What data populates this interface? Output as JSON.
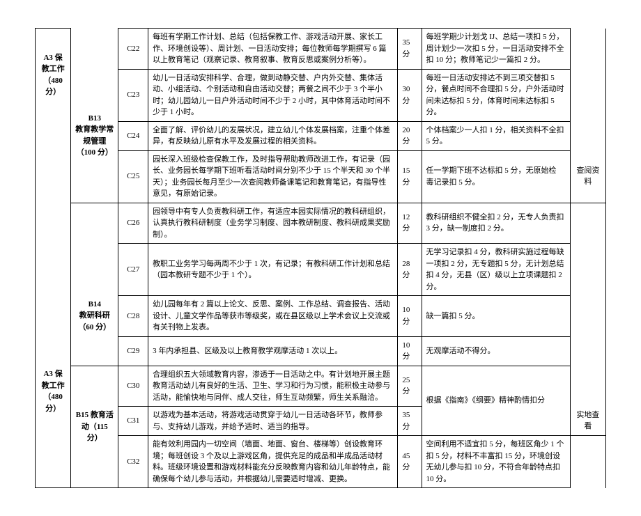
{
  "colA": {
    "a1": "A3 保教工作（480 分）",
    "a2": "A3 保教工作（480 分）"
  },
  "colB": {
    "b13": "B13\n教育教学常规管理（100 分）",
    "b14": "B14\n教研科研（60 分）",
    "b15": "B15 教育活动（115 分）"
  },
  "rows": [
    {
      "c": "C22",
      "desc": "每班有学期工作计划、总结（包括保教工作、游戏活动开展、家长工作、环境创设等）、周计划、一日活动安排；每位教师每学期撰写 6 篇以上教育笔记（观察记录、教育叙事、教育反思或案例分析等）。",
      "score": "35 分",
      "deduct": "每班学期少计划戈 IJ、总结一项扣 5 分，周计划少一次扣 5 分，一日活动安排不全扣 10 分；教师笔记少一篇扣 2 分。"
    },
    {
      "c": "C23",
      "desc": "幼儿一日活动安排科学、合理，做到动静交替、户内外交替、集体活动、小组活动、个别活动和自由活动交替；两餐之间不少于 3 个半小时；幼儿园幼儿一日户外活动时间不少于 2 小时，其中体育活动时间不少于 1 小时。",
      "score": "30 分",
      "deduct": "每班一日活动安排达不到三项交替扣 5 分，餐点时间不合理扣 5 分，户外活动时间未达标扣 5 分，体育时间未达标扣 5 分。"
    },
    {
      "c": "C24",
      "desc": "全面了解、评价幼儿的发展状况，建立幼儿个体发展档案，注重个体差异，有反映幼儿原有水平及发展过程的相关资料。",
      "score": "20 分",
      "deduct": "个体档案少一人扣 1 分，相关资料不全扣 5 分。"
    },
    {
      "c": "C25",
      "desc": "园长深入班级检查保教工作，及时指导帮助教师改进工作，有记录（园长、业务园长每学期下班听看活动时间分别不少于 15 个半天和 30 个半天）；业务园长每月至少一次查阅教师备课笔记和教育笔记，有指导性意见，有原始记录。",
      "score": "15 分",
      "deduct": "任一学期下班不达标扣 5 分，无原始检\n毒记录扣 5 分。"
    },
    {
      "c": "C26",
      "desc": "园领导中有专人负责教科研工作，有适应本园实际情况的教科研组织，认真执行教科研制度（业务学习制度、园本教研制度、教科研成果奖励制）。",
      "score": "12 分",
      "deduct": "教科研组织不健全扣 2 分，无专人负责扣 3 分，缺一制度扣 2 分。"
    },
    {
      "c": "C27",
      "desc": "教职工业务学习每两周不少于 1 次，有记录；有教科研工作计划和总结（园本教研专题不少于 1 个）。",
      "score": "28 分",
      "deduct": "无学习记录扣 4 分，教科研实施过程每缺一项扣 2 分，无专题扣 5 分，无计划总结扣 4 分，无县（区）级以上立项课题扣 2 分。"
    },
    {
      "c": "C28",
      "desc": "幼儿园每年有 2 篇以上论文、反思、案例、工作总结、调查报告、活动设计、儿童文学作品等获市等级奖，或在县区级以上学术会议上交流或有关刊物上发表。",
      "score": "10 分",
      "deduct": "缺一篇扣 5 分。"
    },
    {
      "c": "C29",
      "desc": "3 年内承担县、区级及以上教育教学观摩活动 1 次以上。",
      "score": "10 分",
      "deduct": "无观摩活动不得分。"
    },
    {
      "c": "C30",
      "desc": "合理组织五大领域教育内容，渗透于一日活动之中。有计划地开展主题教育活动幼儿有良好的生活、卫生、学习和行为习惯，能积极主动参与活动，能愉快地与同伴、成人交往，师生互动频繁，师生关系融洽。",
      "score": "25 分",
      "deduct": "根据《指南》《纲要》精神酌情扣分"
    },
    {
      "c": "C31",
      "desc": "以游戏为基本活动，将游戏活动贯穿于幼儿一日活动各环节，教师参与、支持幼儿游戏，并给予适时、适当的指导。",
      "score": "35 分",
      "deduct": ""
    },
    {
      "c": "C32",
      "desc": "能有效利用园内一切空间（墙面、地面、窗台、楼梯等）创设教育环境；每班创设 3 个及以上游戏区角，提供充足的成品和半成品活动材料。班级环境设置和游戏材料能充分反映教育内容和幼儿年龄特点，能确保每个幼儿参与活动，并根据幼儿需要适时增减、更换。",
      "score": "45 分",
      "deduct": "空间利用不适宜扣 5 分，每班区角少 1 个扣 5 分，材料不丰富扣 15 分，环境创设无幼儿参与扣 10 分，不符合年龄特点扣 10 分。"
    }
  ],
  "methods": {
    "m1": "查阅资料",
    "m2": "实地查看"
  }
}
